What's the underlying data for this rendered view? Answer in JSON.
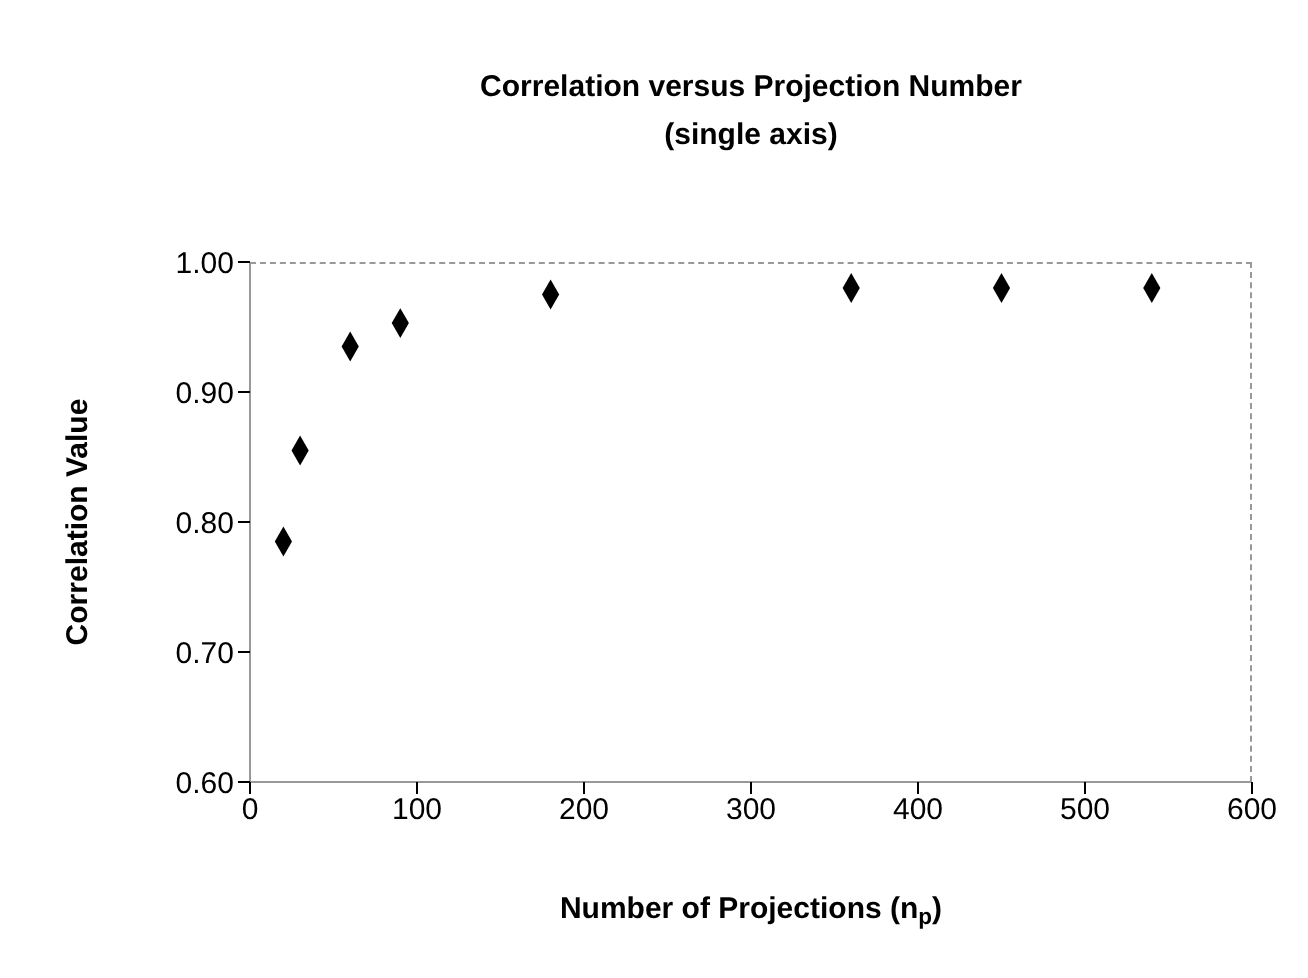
{
  "chart_data": {
    "type": "scatter",
    "title": "Correlation versus Projection Number",
    "subtitle": "(single axis)",
    "xlabel": "Number of Projections (n$_{p}$)",
    "ylabel": "Correlation Value",
    "x": [
      20,
      30,
      60,
      90,
      180,
      360,
      450,
      540
    ],
    "values": [
      0.785,
      0.855,
      0.935,
      0.953,
      0.975,
      0.98,
      0.98,
      0.98
    ],
    "color": "#000000",
    "marker": "diamond",
    "grid": false,
    "legend": false,
    "xlim": [
      0,
      600
    ],
    "xticks": [
      0,
      100,
      200,
      300,
      400,
      500,
      600
    ],
    "ylim": [
      0.6,
      1.0
    ],
    "yticks": [
      {
        "value": 0.6,
        "label": "0.60"
      },
      {
        "value": 0.7,
        "label": "0.70"
      },
      {
        "value": 0.8,
        "label": "0.80"
      },
      {
        "value": 0.9,
        "label": "0.90"
      },
      {
        "value": 1.0,
        "label": "1.00"
      }
    ]
  }
}
